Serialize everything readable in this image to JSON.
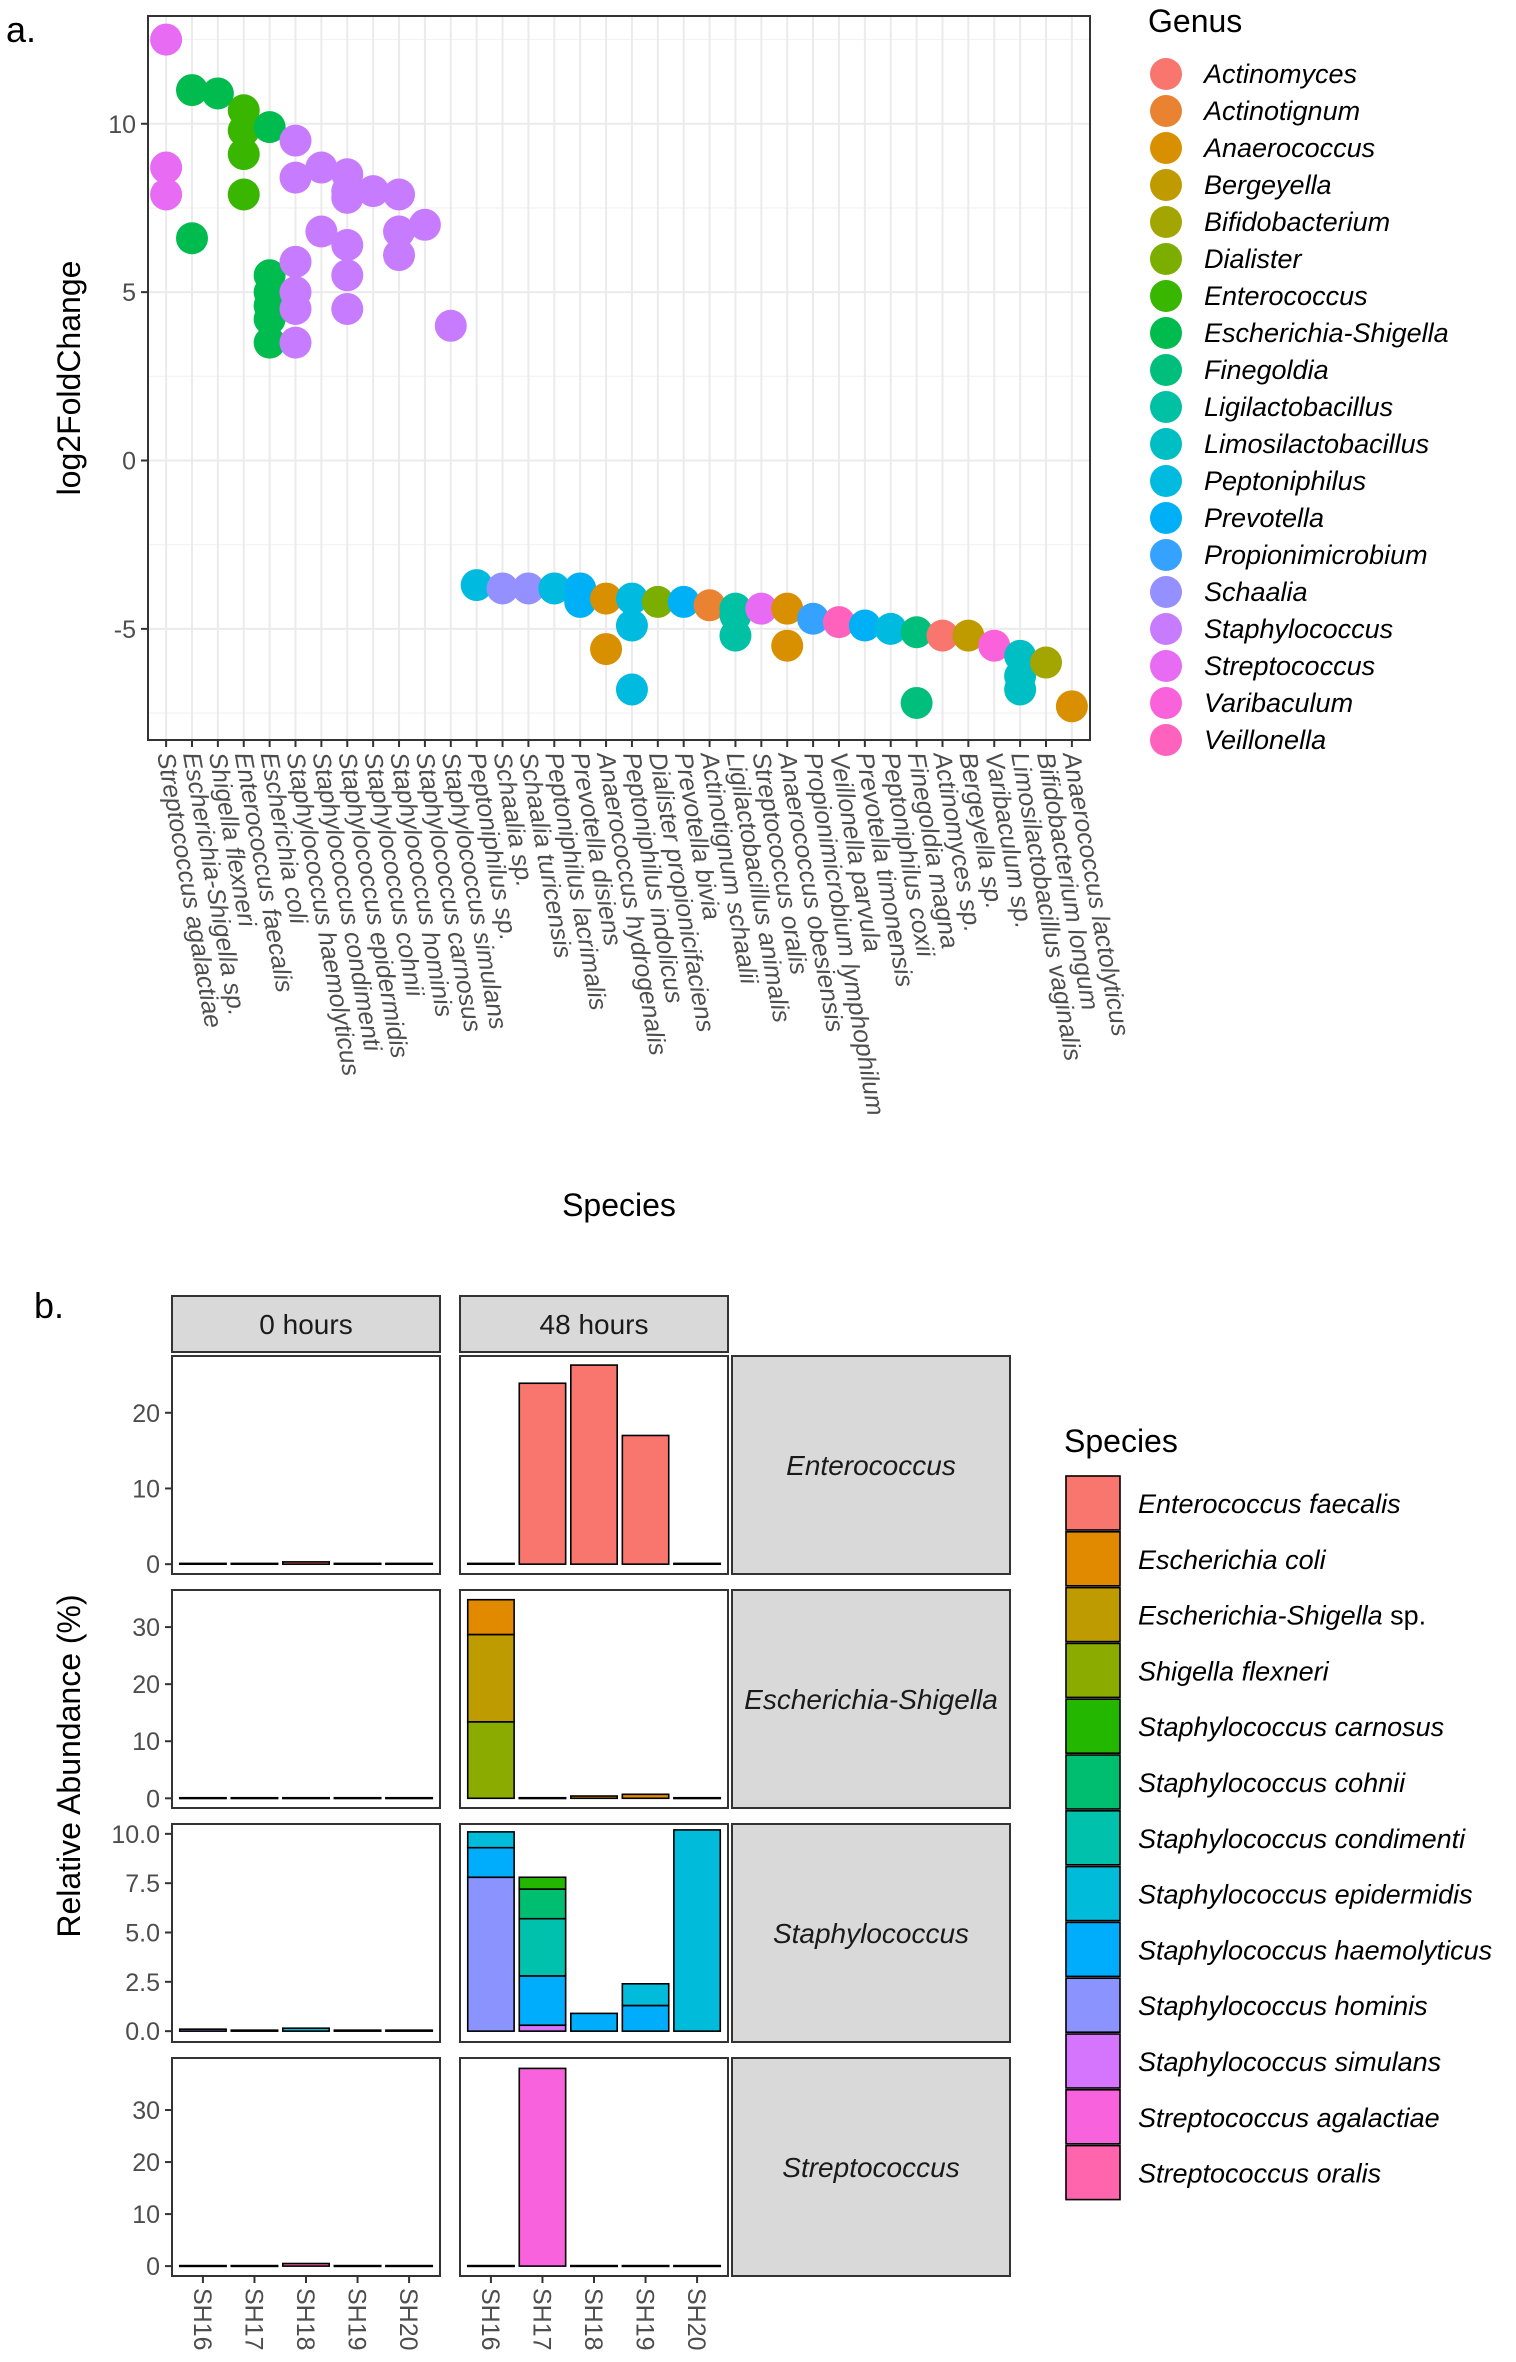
{
  "panel_labels": {
    "a": "a.",
    "b": "b."
  },
  "chart_data": [
    {
      "type": "scatter",
      "panel": "a.",
      "xlabel": "Species",
      "ylabel": "log2FoldChange",
      "ylim": [
        -8.3,
        13.2
      ],
      "yticks": [
        -5,
        0,
        5,
        10
      ],
      "grid": true,
      "legend": {
        "title": "Genus",
        "placement": "right"
      },
      "genera": [
        {
          "name": "Actinomyces",
          "color": "#F8766D"
        },
        {
          "name": "Actinotignum",
          "color": "#EA8331"
        },
        {
          "name": "Anaerococcus",
          "color": "#D89000"
        },
        {
          "name": "Bergeyella",
          "color": "#C09B00"
        },
        {
          "name": "Bifidobacterium",
          "color": "#A3A500"
        },
        {
          "name": "Dialister",
          "color": "#7CAE00"
        },
        {
          "name": "Enterococcus",
          "color": "#39B600"
        },
        {
          "name": "Escherichia-Shigella",
          "color": "#00BB4E"
        },
        {
          "name": "Finegoldia",
          "color": "#00BF7D"
        },
        {
          "name": "Ligilactobacillus",
          "color": "#00C1A3"
        },
        {
          "name": "Limosilactobacillus",
          "color": "#00BFC4"
        },
        {
          "name": "Peptoniphilus",
          "color": "#00BAE0"
        },
        {
          "name": "Prevotella",
          "color": "#00B0F6"
        },
        {
          "name": "Propionimicrobium",
          "color": "#35A2FF"
        },
        {
          "name": "Schaalia",
          "color": "#9590FF"
        },
        {
          "name": "Staphylococcus",
          "color": "#C77CFF"
        },
        {
          "name": "Streptococcus",
          "color": "#E76BF3"
        },
        {
          "name": "Varibaculum",
          "color": "#FA62DB"
        },
        {
          "name": "Veillonella",
          "color": "#FF62BC"
        }
      ],
      "species": [
        {
          "name": "Streptococcus agalactiae",
          "genus": "Streptococcus",
          "values": [
            12.5,
            8.7,
            7.9
          ]
        },
        {
          "name": "Escherichia-Shigella sp.",
          "genus": "Escherichia-Shigella",
          "values": [
            11.0,
            6.6
          ]
        },
        {
          "name": "Shigella flexneri",
          "genus": "Escherichia-Shigella",
          "values": [
            10.9
          ]
        },
        {
          "name": "Enterococcus faecalis",
          "genus": "Enterococcus",
          "values": [
            10.4,
            9.8,
            9.1,
            7.9
          ]
        },
        {
          "name": "Escherichia coli",
          "genus": "Escherichia-Shigella",
          "values": [
            9.9,
            5.5,
            5.0,
            4.6,
            4.2,
            3.5
          ]
        },
        {
          "name": "Staphylococcus haemolyticus",
          "genus": "Staphylococcus",
          "values": [
            9.5,
            8.4,
            5.9,
            5.0,
            4.5,
            3.5
          ]
        },
        {
          "name": "Staphylococcus condimenti",
          "genus": "Staphylococcus",
          "values": [
            8.7,
            6.8
          ]
        },
        {
          "name": "Staphylococcus epidermidis",
          "genus": "Staphylococcus",
          "values": [
            8.5,
            8.0,
            7.8,
            6.4,
            5.5,
            4.5
          ]
        },
        {
          "name": "Staphylococcus cohnii",
          "genus": "Staphylococcus",
          "values": [
            8.0
          ]
        },
        {
          "name": "Staphylococcus hominis",
          "genus": "Staphylococcus",
          "values": [
            7.9,
            6.8,
            6.1
          ]
        },
        {
          "name": "Staphylococcus carnosus",
          "genus": "Staphylococcus",
          "values": [
            7.0
          ]
        },
        {
          "name": "Staphylococcus simulans",
          "genus": "Staphylococcus",
          "values": [
            4.0
          ]
        },
        {
          "name": "Peptoniphilus sp.",
          "genus": "Peptoniphilus",
          "values": [
            -3.7
          ]
        },
        {
          "name": "Schaalia sp.",
          "genus": "Schaalia",
          "values": [
            -3.8
          ]
        },
        {
          "name": "Schaalia turicensis",
          "genus": "Schaalia",
          "values": [
            -3.8
          ]
        },
        {
          "name": "Peptoniphilus lacrimalis",
          "genus": "Peptoniphilus",
          "values": [
            -3.8
          ]
        },
        {
          "name": "Prevotella disiens",
          "genus": "Prevotella",
          "values": [
            -3.8,
            -4.2
          ]
        },
        {
          "name": "Anaerococcus hydrogenalis",
          "genus": "Anaerococcus",
          "values": [
            -4.1,
            -5.6
          ]
        },
        {
          "name": "Peptoniphilus indolicus",
          "genus": "Peptoniphilus",
          "values": [
            -4.1,
            -4.9,
            -6.8
          ]
        },
        {
          "name": "Dialister propionicifaciens",
          "genus": "Dialister",
          "values": [
            -4.2
          ]
        },
        {
          "name": "Prevotella bivia",
          "genus": "Prevotella",
          "values": [
            -4.2
          ]
        },
        {
          "name": "Actinotignum schaalii",
          "genus": "Actinotignum",
          "values": [
            -4.3
          ]
        },
        {
          "name": "Ligilactobacillus animalis",
          "genus": "Ligilactobacillus",
          "values": [
            -4.4,
            -4.6,
            -5.2
          ]
        },
        {
          "name": "Streptococcus oralis",
          "genus": "Streptococcus",
          "values": [
            -4.4
          ]
        },
        {
          "name": "Anaerococcus obesiensis",
          "genus": "Anaerococcus",
          "values": [
            -4.4,
            -5.5
          ]
        },
        {
          "name": "Propionimicrobium lymphophilum",
          "genus": "Propionimicrobium",
          "values": [
            -4.7
          ]
        },
        {
          "name": "Veillonella parvula",
          "genus": "Veillonella",
          "values": [
            -4.8
          ]
        },
        {
          "name": "Prevotella timonensis",
          "genus": "Prevotella",
          "values": [
            -4.9
          ]
        },
        {
          "name": "Peptoniphilus coxii",
          "genus": "Peptoniphilus",
          "values": [
            -5.0
          ]
        },
        {
          "name": "Finegoldia magna",
          "genus": "Finegoldia",
          "values": [
            -5.1,
            -7.2
          ]
        },
        {
          "name": "Actinomyces sp.",
          "genus": "Actinomyces",
          "values": [
            -5.2
          ]
        },
        {
          "name": "Bergeyella sp.",
          "genus": "Bergeyella",
          "values": [
            -5.2
          ]
        },
        {
          "name": "Varibaculum sp.",
          "genus": "Varibaculum",
          "values": [
            -5.5
          ]
        },
        {
          "name": "Limosilactobacillus vaginalis",
          "genus": "Limosilactobacillus",
          "values": [
            -5.8,
            -6.4,
            -6.8
          ]
        },
        {
          "name": "Bifidobacterium longum",
          "genus": "Bifidobacterium",
          "values": [
            -6.0
          ]
        },
        {
          "name": "Anaerococcus lactolyticus",
          "genus": "Anaerococcus",
          "values": [
            -7.3
          ]
        }
      ]
    },
    {
      "type": "bar",
      "panel": "b.",
      "stacked": true,
      "ylabel": "Relative Abundance (%)",
      "facet_cols": [
        "0 hours",
        "48 hours"
      ],
      "facet_rows": [
        {
          "name": "Enterococcus",
          "ylim": [
            -1.3,
            27.5
          ],
          "yticks": [
            0,
            10,
            20
          ],
          "ytick_labels": [
            "0",
            "10",
            "20"
          ]
        },
        {
          "name": "Escherichia-Shigella",
          "ylim": [
            -1.7,
            36.5
          ],
          "yticks": [
            0,
            10,
            20,
            30
          ],
          "ytick_labels": [
            "0",
            "10",
            "20",
            "30"
          ]
        },
        {
          "name": "Staphylococcus",
          "ylim": [
            -0.55,
            10.5
          ],
          "yticks": [
            0,
            2.5,
            5,
            7.5,
            10
          ],
          "ytick_labels": [
            "0.0",
            "2.5",
            "5.0",
            "7.5",
            "10.0"
          ]
        },
        {
          "name": "Streptococcus",
          "ylim": [
            -1.9,
            40.0
          ],
          "yticks": [
            0,
            10,
            20,
            30
          ],
          "ytick_labels": [
            "0",
            "10",
            "20",
            "30"
          ]
        }
      ],
      "categories": [
        "SH16",
        "SH17",
        "SH18",
        "SH19",
        "SH20"
      ],
      "legend": {
        "title": "Species",
        "placement": "right",
        "items": [
          {
            "genus_part": "Enterococcus faecalis",
            "suffix": "",
            "color": "#F8766D"
          },
          {
            "genus_part": "Escherichia coli",
            "suffix": "",
            "color": "#E18A00"
          },
          {
            "genus_part": "Escherichia-Shigella",
            "suffix": " sp.",
            "color": "#BE9C00"
          },
          {
            "genus_part": "Shigella flexneri",
            "suffix": "",
            "color": "#8CAB00"
          },
          {
            "genus_part": "Staphylococcus carnosus",
            "suffix": "",
            "color": "#24B700"
          },
          {
            "genus_part": "Staphylococcus cohnii",
            "suffix": "",
            "color": "#00BE70"
          },
          {
            "genus_part": "Staphylococcus condimenti",
            "suffix": "",
            "color": "#00C1AB"
          },
          {
            "genus_part": "Staphylococcus epidermidis",
            "suffix": "",
            "color": "#00BBDA"
          },
          {
            "genus_part": "Staphylococcus haemolyticus",
            "suffix": "",
            "color": "#00ACFC"
          },
          {
            "genus_part": "Staphylococcus hominis",
            "suffix": "",
            "color": "#8B93FF"
          },
          {
            "genus_part": "Staphylococcus simulans",
            "suffix": "",
            "color": "#D575FE"
          },
          {
            "genus_part": "Streptococcus agalactiae",
            "suffix": "",
            "color": "#F962DD"
          },
          {
            "genus_part": "Streptococcus oralis",
            "suffix": "",
            "color": "#FF65AC"
          }
        ]
      },
      "series": [
        {
          "row": "Enterococcus",
          "col": "0 hours",
          "stacks": [
            [
              [
                "Enterococcus faecalis",
                0.1
              ]
            ],
            [
              [
                "Enterococcus faecalis",
                0.1
              ]
            ],
            [
              [
                "Enterococcus faecalis",
                0.3
              ]
            ],
            [
              [
                "Enterococcus faecalis",
                0.1
              ]
            ],
            [
              [
                "Enterococcus faecalis",
                0.1
              ]
            ]
          ]
        },
        {
          "row": "Enterococcus",
          "col": "48 hours",
          "stacks": [
            [
              [
                "Enterococcus faecalis",
                0.1
              ]
            ],
            [
              [
                "Enterococcus faecalis",
                23.9
              ]
            ],
            [
              [
                "Enterococcus faecalis",
                26.3
              ]
            ],
            [
              [
                "Enterococcus faecalis",
                17.0
              ]
            ],
            [
              [
                "Enterococcus faecalis",
                0.1
              ]
            ]
          ]
        },
        {
          "row": "Escherichia-Shigella",
          "col": "0 hours",
          "stacks": [
            [
              [
                "Escherichia coli",
                0.1
              ]
            ],
            [
              [
                "Escherichia coli",
                0.1
              ]
            ],
            [
              [
                "Escherichia coli",
                0.1
              ]
            ],
            [
              [
                "Escherichia coli",
                0.1
              ]
            ],
            [
              [
                "Escherichia coli",
                0.1
              ]
            ]
          ]
        },
        {
          "row": "Escherichia-Shigella",
          "col": "48 hours",
          "stacks": [
            [
              [
                "Shigella flexneri",
                13.4
              ],
              [
                "Escherichia-Shigella",
                15.3
              ],
              [
                "Escherichia coli",
                6.1
              ]
            ],
            [
              [
                "Escherichia coli",
                0.1
              ]
            ],
            [
              [
                "Escherichia coli",
                0.4
              ]
            ],
            [
              [
                "Escherichia coli",
                0.7
              ]
            ],
            [
              [
                "Escherichia coli",
                0.1
              ]
            ]
          ]
        },
        {
          "row": "Staphylococcus",
          "col": "0 hours",
          "stacks": [
            [
              [
                "Staphylococcus hominis",
                0.1
              ]
            ],
            [
              [
                "Staphylococcus hominis",
                0.05
              ]
            ],
            [
              [
                "Staphylococcus epidermidis",
                0.15
              ]
            ],
            [
              [
                "Staphylococcus hominis",
                0.05
              ]
            ],
            [
              [
                "Staphylococcus hominis",
                0.05
              ]
            ]
          ]
        },
        {
          "row": "Staphylococcus",
          "col": "48 hours",
          "stacks": [
            [
              [
                "Staphylococcus hominis",
                7.8
              ],
              [
                "Staphylococcus haemolyticus",
                1.5
              ],
              [
                "Staphylococcus epidermidis",
                0.8
              ]
            ],
            [
              [
                "Staphylococcus simulans",
                0.3
              ],
              [
                "Staphylococcus haemolyticus",
                2.5
              ],
              [
                "Staphylococcus condimenti",
                2.9
              ],
              [
                "Staphylococcus cohnii",
                1.5
              ],
              [
                "Staphylococcus carnosus",
                0.6
              ]
            ],
            [
              [
                "Staphylococcus haemolyticus",
                0.9
              ]
            ],
            [
              [
                "Staphylococcus haemolyticus",
                1.3
              ],
              [
                "Staphylococcus epidermidis",
                1.1
              ]
            ],
            [
              [
                "Staphylococcus epidermidis",
                10.2
              ]
            ]
          ]
        },
        {
          "row": "Streptococcus",
          "col": "0 hours",
          "stacks": [
            [
              [
                "Streptococcus agalactiae",
                0.1
              ]
            ],
            [
              [
                "Streptococcus agalactiae",
                0.1
              ]
            ],
            [
              [
                "Streptococcus oralis",
                0.5
              ]
            ],
            [
              [
                "Streptococcus agalactiae",
                0.1
              ]
            ],
            [
              [
                "Streptococcus agalactiae",
                0.1
              ]
            ]
          ]
        },
        {
          "row": "Streptococcus",
          "col": "48 hours",
          "stacks": [
            [
              [
                "Streptococcus agalactiae",
                0.1
              ]
            ],
            [
              [
                "Streptococcus agalactiae",
                38.0
              ]
            ],
            [
              [
                "Streptococcus agalactiae",
                0.1
              ]
            ],
            [
              [
                "Streptococcus agalactiae",
                0.1
              ]
            ],
            [
              [
                "Streptococcus agalactiae",
                0.1
              ]
            ]
          ]
        }
      ]
    }
  ]
}
